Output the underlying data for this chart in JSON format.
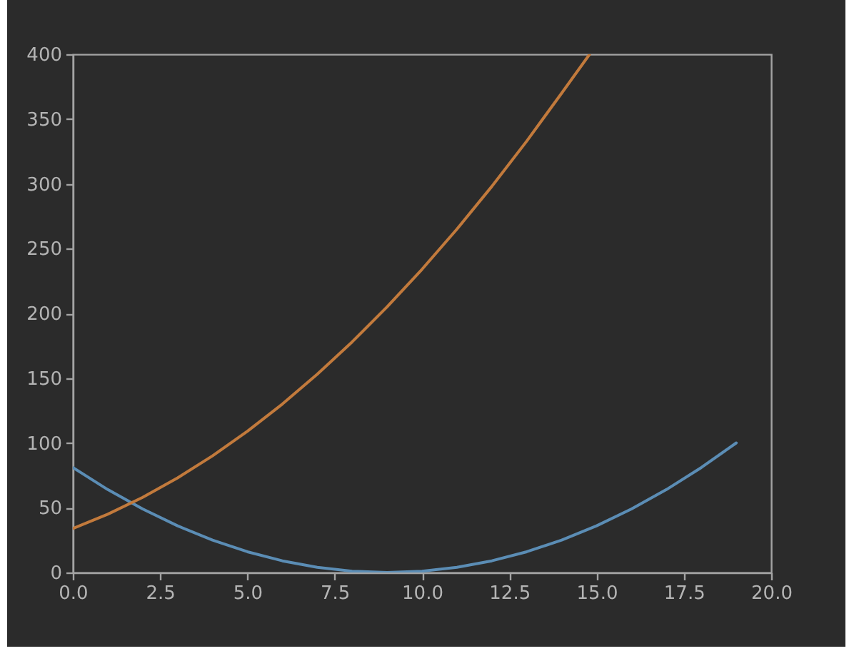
{
  "chart_data": {
    "type": "line",
    "xlim": [
      0,
      20
    ],
    "xticks": [
      {
        "value": 0,
        "label": "0.0"
      },
      {
        "value": 2.5,
        "label": "2.5"
      },
      {
        "value": 5,
        "label": "5.0"
      },
      {
        "value": 7.5,
        "label": "7.5"
      },
      {
        "value": 10,
        "label": "10.0"
      },
      {
        "value": 12.5,
        "label": "12.5"
      },
      {
        "value": 15,
        "label": "15.0"
      },
      {
        "value": 17.5,
        "label": "17.5"
      },
      {
        "value": 20,
        "label": "20.0"
      }
    ],
    "ylim": [
      0,
      400
    ],
    "yticks": [
      0,
      50,
      100,
      150,
      200,
      250,
      300,
      350,
      400
    ],
    "series": [
      {
        "color": "#5b8db5",
        "x": [
          0,
          1,
          2,
          3,
          4,
          5,
          6,
          7,
          8,
          9,
          10,
          11,
          12,
          13,
          14,
          15,
          16,
          17,
          18,
          19
        ],
        "values": [
          81,
          64,
          49,
          36,
          25,
          16,
          9,
          4,
          1,
          0,
          1,
          4,
          9,
          16,
          25,
          36,
          49,
          64,
          81,
          100
        ]
      },
      {
        "color": "#c27a3c",
        "x": [
          0,
          1,
          2,
          3,
          4,
          5,
          6,
          7,
          8,
          9,
          10,
          11,
          12,
          13,
          14,
          14.8
        ],
        "values": [
          34,
          45,
          58,
          73,
          90,
          109,
          130,
          153,
          178,
          205,
          234,
          265,
          298,
          333,
          370,
          400
        ]
      }
    ]
  }
}
